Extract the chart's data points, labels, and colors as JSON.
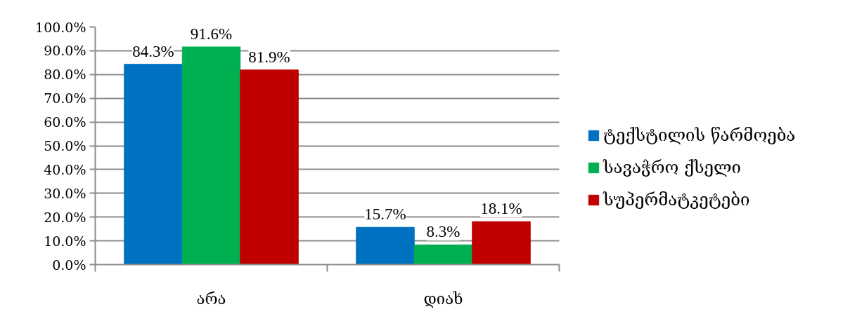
{
  "chart_data": {
    "type": "bar",
    "categories": [
      "არა",
      "დიახ"
    ],
    "series": [
      {
        "name": "ტექსტილის წარმოება",
        "color": "#0070c0",
        "values": [
          84.3,
          15.7
        ],
        "value_labels": [
          "84.3%",
          "15.7%"
        ]
      },
      {
        "name": "სავაჭრო ქსელი",
        "color": "#00b050",
        "values": [
          91.6,
          8.3
        ],
        "value_labels": [
          "91.6%",
          "8.3%"
        ]
      },
      {
        "name": "სუპერმატკეტები",
        "color": "#c00000",
        "values": [
          81.9,
          18.1
        ],
        "value_labels": [
          "81.9%",
          "18.1%"
        ]
      }
    ],
    "ylim": [
      0,
      100
    ],
    "yticks": [
      {
        "value": 0,
        "label": "0.0%"
      },
      {
        "value": 10,
        "label": "10.0%"
      },
      {
        "value": 20,
        "label": "20.0%"
      },
      {
        "value": 30,
        "label": "30.0%"
      },
      {
        "value": 40,
        "label": "40.0%"
      },
      {
        "value": 50,
        "label": "50.0%"
      },
      {
        "value": 60,
        "label": "60.0%"
      },
      {
        "value": 70,
        "label": "70.0%"
      },
      {
        "value": 80,
        "label": "80.0%"
      },
      {
        "value": 90,
        "label": "90.0%"
      },
      {
        "value": 100,
        "label": "100.0%"
      }
    ],
    "grid": "y",
    "legend": "right"
  }
}
